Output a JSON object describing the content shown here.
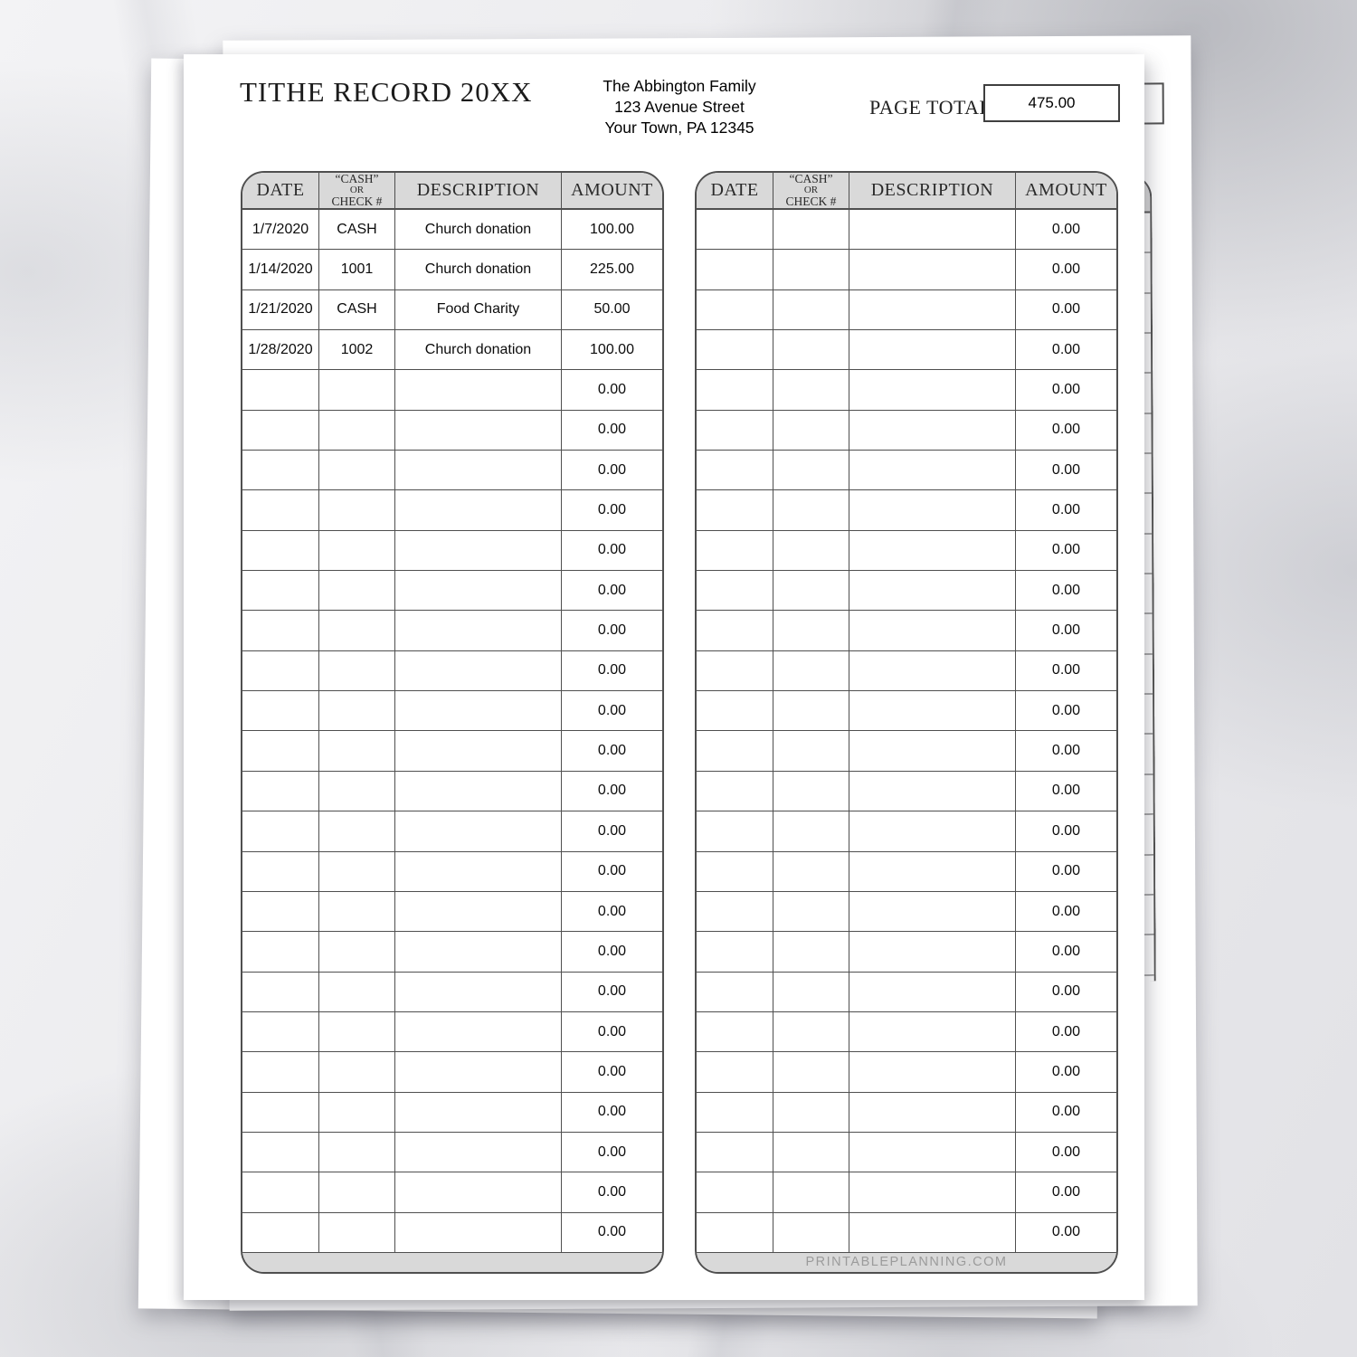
{
  "document": {
    "title": "TITHE RECORD 20XX",
    "owner": {
      "name": "The Abbington Family",
      "address1": "123 Avenue Street",
      "address2": "Your Town, PA 12345"
    },
    "page_total": {
      "label": "PAGE TOTAL:",
      "value": "475.00"
    }
  },
  "table_headers": {
    "date": "DATE",
    "cash_or_check_line1": "“CASH”",
    "cash_or_check_line2": "OR",
    "cash_or_check_line3": "CHECK #",
    "description": "DESCRIPTION",
    "amount": "AMOUNT"
  },
  "tables": {
    "left": {
      "footer_text": "",
      "rows": [
        {
          "date": "1/7/2020",
          "method": "CASH",
          "description": "Church donation",
          "amount": "100.00"
        },
        {
          "date": "1/14/2020",
          "method": "1001",
          "description": "Church donation",
          "amount": "225.00"
        },
        {
          "date": "1/21/2020",
          "method": "CASH",
          "description": "Food Charity",
          "amount": "50.00"
        },
        {
          "date": "1/28/2020",
          "method": "1002",
          "description": "Church donation",
          "amount": "100.00"
        },
        {
          "date": "",
          "method": "",
          "description": "",
          "amount": "0.00"
        },
        {
          "date": "",
          "method": "",
          "description": "",
          "amount": "0.00"
        },
        {
          "date": "",
          "method": "",
          "description": "",
          "amount": "0.00"
        },
        {
          "date": "",
          "method": "",
          "description": "",
          "amount": "0.00"
        },
        {
          "date": "",
          "method": "",
          "description": "",
          "amount": "0.00"
        },
        {
          "date": "",
          "method": "",
          "description": "",
          "amount": "0.00"
        },
        {
          "date": "",
          "method": "",
          "description": "",
          "amount": "0.00"
        },
        {
          "date": "",
          "method": "",
          "description": "",
          "amount": "0.00"
        },
        {
          "date": "",
          "method": "",
          "description": "",
          "amount": "0.00"
        },
        {
          "date": "",
          "method": "",
          "description": "",
          "amount": "0.00"
        },
        {
          "date": "",
          "method": "",
          "description": "",
          "amount": "0.00"
        },
        {
          "date": "",
          "method": "",
          "description": "",
          "amount": "0.00"
        },
        {
          "date": "",
          "method": "",
          "description": "",
          "amount": "0.00"
        },
        {
          "date": "",
          "method": "",
          "description": "",
          "amount": "0.00"
        },
        {
          "date": "",
          "method": "",
          "description": "",
          "amount": "0.00"
        },
        {
          "date": "",
          "method": "",
          "description": "",
          "amount": "0.00"
        },
        {
          "date": "",
          "method": "",
          "description": "",
          "amount": "0.00"
        },
        {
          "date": "",
          "method": "",
          "description": "",
          "amount": "0.00"
        },
        {
          "date": "",
          "method": "",
          "description": "",
          "amount": "0.00"
        },
        {
          "date": "",
          "method": "",
          "description": "",
          "amount": "0.00"
        },
        {
          "date": "",
          "method": "",
          "description": "",
          "amount": "0.00"
        },
        {
          "date": "",
          "method": "",
          "description": "",
          "amount": "0.00"
        }
      ]
    },
    "right": {
      "footer_text": "PRINTABLEPLANNING.COM",
      "rows": [
        {
          "date": "",
          "method": "",
          "description": "",
          "amount": "0.00"
        },
        {
          "date": "",
          "method": "",
          "description": "",
          "amount": "0.00"
        },
        {
          "date": "",
          "method": "",
          "description": "",
          "amount": "0.00"
        },
        {
          "date": "",
          "method": "",
          "description": "",
          "amount": "0.00"
        },
        {
          "date": "",
          "method": "",
          "description": "",
          "amount": "0.00"
        },
        {
          "date": "",
          "method": "",
          "description": "",
          "amount": "0.00"
        },
        {
          "date": "",
          "method": "",
          "description": "",
          "amount": "0.00"
        },
        {
          "date": "",
          "method": "",
          "description": "",
          "amount": "0.00"
        },
        {
          "date": "",
          "method": "",
          "description": "",
          "amount": "0.00"
        },
        {
          "date": "",
          "method": "",
          "description": "",
          "amount": "0.00"
        },
        {
          "date": "",
          "method": "",
          "description": "",
          "amount": "0.00"
        },
        {
          "date": "",
          "method": "",
          "description": "",
          "amount": "0.00"
        },
        {
          "date": "",
          "method": "",
          "description": "",
          "amount": "0.00"
        },
        {
          "date": "",
          "method": "",
          "description": "",
          "amount": "0.00"
        },
        {
          "date": "",
          "method": "",
          "description": "",
          "amount": "0.00"
        },
        {
          "date": "",
          "method": "",
          "description": "",
          "amount": "0.00"
        },
        {
          "date": "",
          "method": "",
          "description": "",
          "amount": "0.00"
        },
        {
          "date": "",
          "method": "",
          "description": "",
          "amount": "0.00"
        },
        {
          "date": "",
          "method": "",
          "description": "",
          "amount": "0.00"
        },
        {
          "date": "",
          "method": "",
          "description": "",
          "amount": "0.00"
        },
        {
          "date": "",
          "method": "",
          "description": "",
          "amount": "0.00"
        },
        {
          "date": "",
          "method": "",
          "description": "",
          "amount": "0.00"
        },
        {
          "date": "",
          "method": "",
          "description": "",
          "amount": "0.00"
        },
        {
          "date": "",
          "method": "",
          "description": "",
          "amount": "0.00"
        },
        {
          "date": "",
          "method": "",
          "description": "",
          "amount": "0.00"
        },
        {
          "date": "",
          "method": "",
          "description": "",
          "amount": "0.00"
        }
      ]
    }
  },
  "colors": {
    "header_fill": "#d9d9d9",
    "table_border": "#4f4f4f",
    "watermark_text": "#9b9b9b",
    "paper": "#ffffff"
  }
}
